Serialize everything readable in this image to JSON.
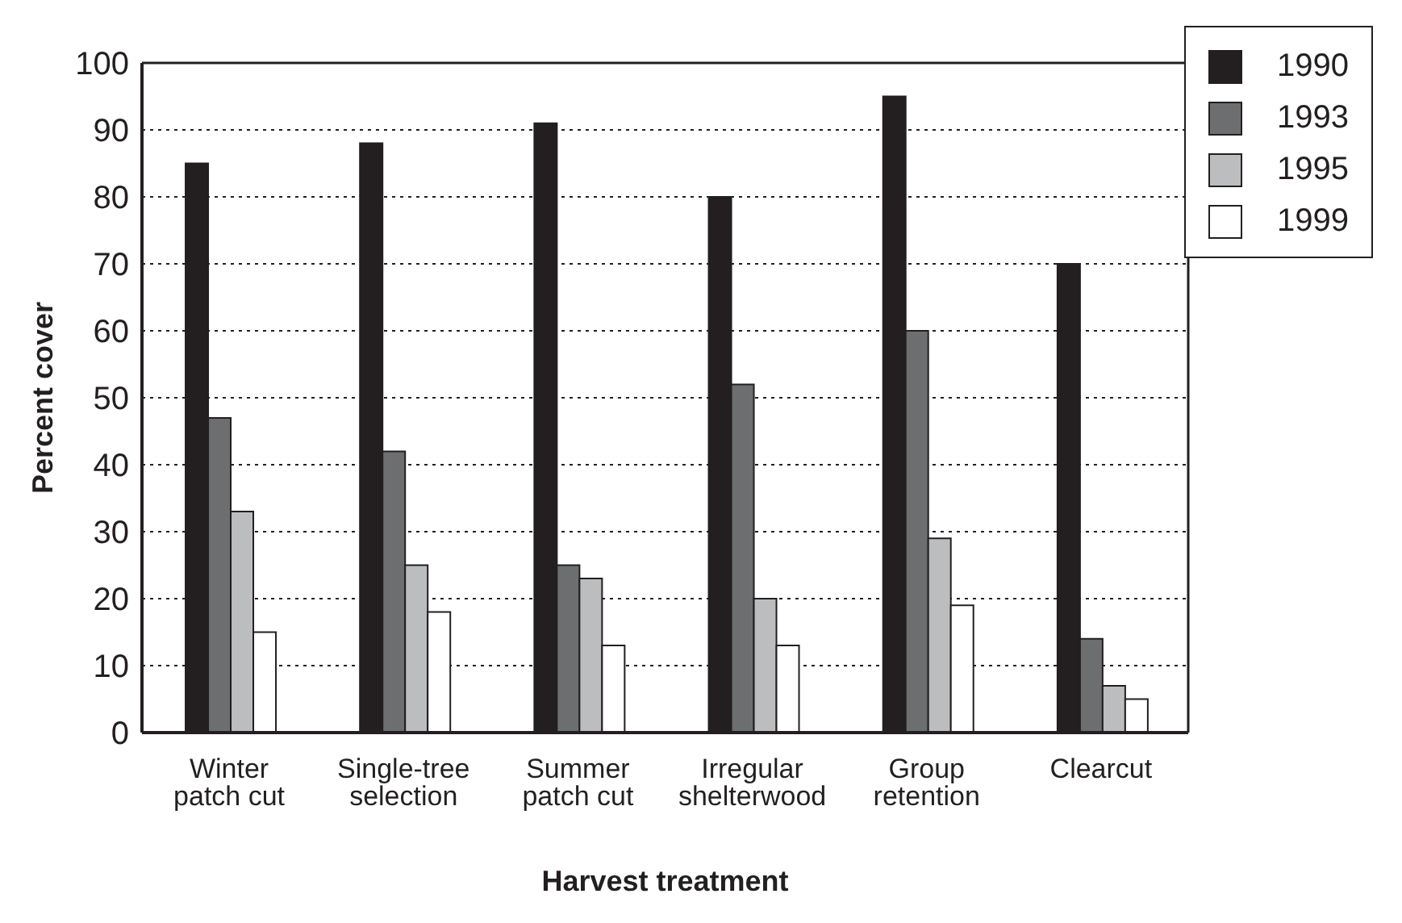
{
  "chart_data": {
    "type": "bar",
    "xlabel": "Harvest treatment",
    "ylabel": "Percent cover",
    "categories": [
      "Winter patch cut",
      "Single-tree selection",
      "Summer patch cut",
      "Irregular shelterwood",
      "Group retention",
      "Clearcut"
    ],
    "series": [
      {
        "name": "1990",
        "color": "#231f20",
        "values": [
          85,
          88,
          91,
          80,
          95,
          70
        ]
      },
      {
        "name": "1993",
        "color": "#6d6e70",
        "values": [
          47,
          42,
          25,
          52,
          60,
          14
        ]
      },
      {
        "name": "1995",
        "color": "#bcbdbf",
        "values": [
          33,
          25,
          23,
          20,
          29,
          7
        ]
      },
      {
        "name": "1999",
        "color": "#ffffff",
        "values": [
          15,
          18,
          13,
          13,
          19,
          5
        ]
      }
    ],
    "ylim": [
      0,
      100
    ],
    "yticks": [
      0,
      10,
      20,
      30,
      40,
      50,
      60,
      70,
      80,
      90,
      100
    ],
    "grid": "y",
    "legend": "top right"
  }
}
